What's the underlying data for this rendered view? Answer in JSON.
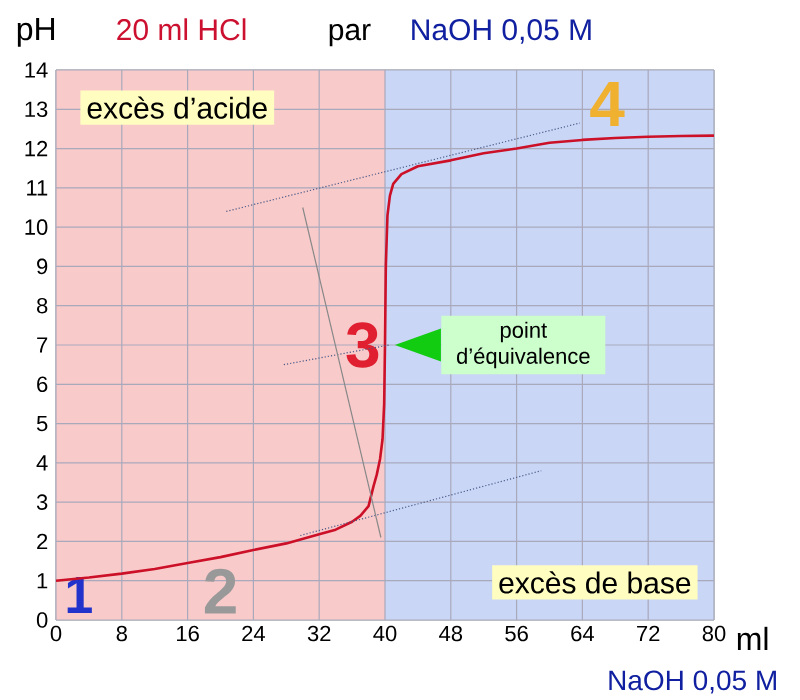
{
  "chart_data": {
    "type": "line",
    "title": "20 ml HCl",
    "ylabel": "pH",
    "xlabel": "ml",
    "xlim": [
      0,
      80
    ],
    "ylim": [
      0,
      14
    ],
    "xticks": [
      0,
      8,
      16,
      24,
      32,
      40,
      48,
      56,
      64,
      72,
      80
    ],
    "yticks": [
      0,
      1,
      2,
      3,
      4,
      5,
      6,
      7,
      8,
      9,
      10,
      11,
      12,
      13,
      14
    ],
    "grid": true,
    "bands": [
      {
        "axis": "x",
        "from": 0,
        "to": 40,
        "label": "excès d’acide",
        "color": "#f9caca"
      },
      {
        "axis": "x",
        "from": 40,
        "to": 80,
        "label": "excès de base",
        "color": "#c9d6f6"
      }
    ],
    "series": [
      {
        "color": "#cc1028",
        "line_style": "solid",
        "x": [
          0,
          4,
          8,
          12,
          16,
          20,
          24,
          28,
          32,
          34,
          36,
          37,
          38,
          38.6,
          39,
          39.4,
          39.7,
          39.9,
          40,
          40.1,
          40.3,
          40.6,
          41,
          42,
          44,
          48,
          52,
          56,
          60,
          64,
          68,
          72,
          76,
          80
        ],
        "values": [
          1.0,
          1.08,
          1.18,
          1.3,
          1.45,
          1.6,
          1.78,
          1.95,
          2.18,
          2.3,
          2.5,
          2.65,
          2.9,
          3.4,
          3.7,
          4.1,
          4.6,
          5.5,
          7.0,
          9.0,
          10.3,
          10.8,
          11.1,
          11.35,
          11.55,
          11.7,
          11.88,
          12.0,
          12.15,
          12.22,
          12.27,
          12.3,
          12.32,
          12.33
        ]
      },
      {
        "color": "#4a5a88",
        "line_style": "dotted",
        "x": [
          20.7,
          63.7
        ],
        "values": [
          10.4,
          12.65
        ]
      },
      {
        "color": "#4a5a88",
        "line_style": "dotted",
        "x": [
          27.7,
          40.5
        ],
        "values": [
          6.5,
          7.0
        ]
      },
      {
        "color": "#4a5a88",
        "line_style": "dotted",
        "x": [
          29.7,
          59
        ],
        "values": [
          2.15,
          3.8
        ]
      },
      {
        "color": "#888888",
        "line_style": "solid",
        "x": [
          30,
          39.5
        ],
        "values": [
          10.5,
          2.1
        ]
      }
    ],
    "annotations": [
      "par",
      "NaOH 0,05 M",
      "NaOH 0,05 M",
      {
        "text": "1",
        "x": 0,
        "y": 1.0
      },
      {
        "text": "2",
        "x": 20,
        "y": 1.6
      },
      {
        "text": "3",
        "x": 40,
        "y": 7.0
      },
      {
        "text": "4",
        "x": 67,
        "y": 12.27
      },
      "point d’équivalence"
    ]
  }
}
